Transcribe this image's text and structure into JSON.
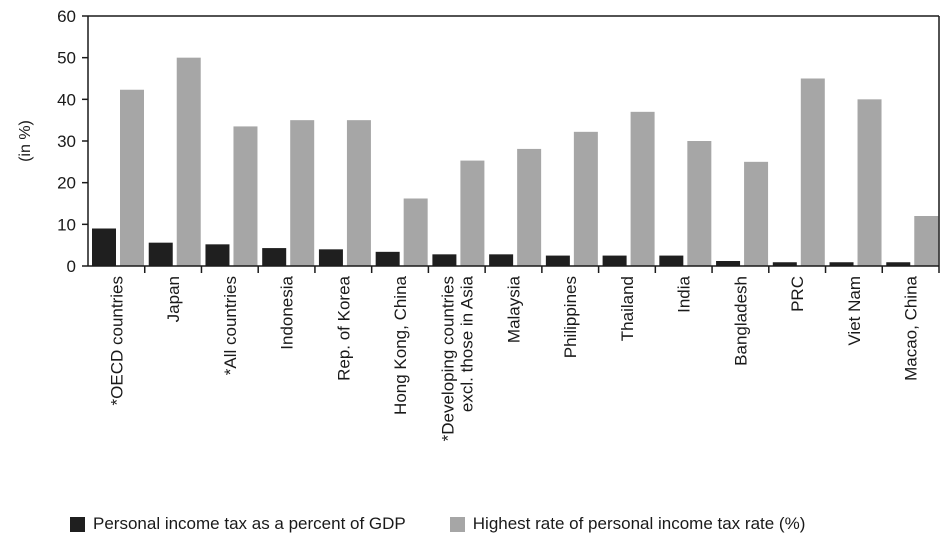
{
  "chart_data": {
    "type": "bar",
    "title": "",
    "xlabel": "",
    "ylabel": "(in %)",
    "ylim": [
      0,
      60
    ],
    "yticks": [
      0,
      10,
      20,
      30,
      40,
      50,
      60
    ],
    "grid": false,
    "legend_position": "bottom",
    "categories": [
      [
        "*OECD countries"
      ],
      [
        "Japan"
      ],
      [
        "*All countries"
      ],
      [
        "Indonesia"
      ],
      [
        "Rep. of Korea"
      ],
      [
        "Hong Kong, China"
      ],
      [
        "*Developing countries",
        "excl. those in Asia"
      ],
      [
        "Malaysia"
      ],
      [
        "Philippines"
      ],
      [
        "Thailand"
      ],
      [
        "India"
      ],
      [
        "Bangladesh"
      ],
      [
        "PRC"
      ],
      [
        "Viet Nam"
      ],
      [
        "Macao, China"
      ]
    ],
    "series": [
      {
        "name": "Personal income tax as a percent of GDP",
        "color": "#1f1f1f",
        "values": [
          9.0,
          5.6,
          5.2,
          4.3,
          4.0,
          3.4,
          2.8,
          2.8,
          2.5,
          2.5,
          2.5,
          1.2,
          0.9,
          0.9,
          0.9
        ]
      },
      {
        "name": "Highest rate of personal income tax rate (%)",
        "color": "#a6a6a6",
        "values": [
          42.3,
          50,
          33.5,
          35,
          35,
          16.2,
          25.3,
          28.1,
          32.2,
          37,
          30,
          25,
          45,
          40,
          12
        ]
      }
    ]
  }
}
